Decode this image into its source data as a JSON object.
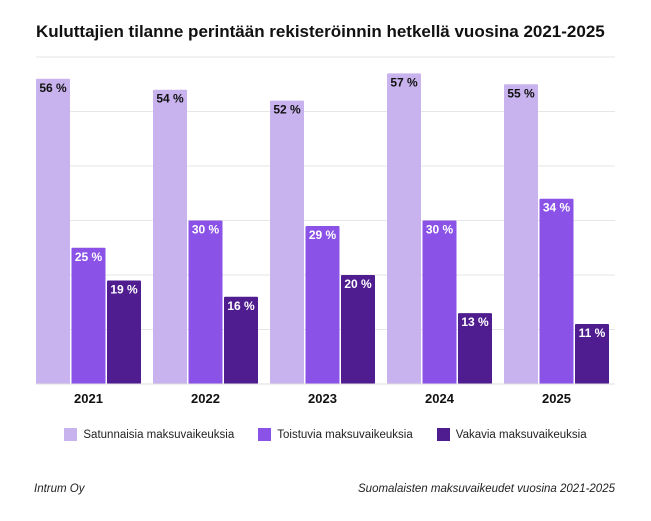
{
  "title": "Kuluttajien tilanne perintään rekisteröinnin hetkellä vuosina 2021-2025",
  "chart_data": {
    "type": "bar",
    "categories": [
      "2021",
      "2022",
      "2023",
      "2024",
      "2025"
    ],
    "series": [
      {
        "name": "Satunnaisia maksuvaikeuksia",
        "color": "#c9b3ef",
        "values": [
          56,
          54,
          52,
          57,
          55
        ]
      },
      {
        "name": "Toistuvia maksuvaikeuksia",
        "color": "#8a52e6",
        "values": [
          25,
          30,
          29,
          30,
          34
        ]
      },
      {
        "name": "Vakavia maksuvaikeuksia",
        "color": "#4f1d8f",
        "values": [
          19,
          16,
          20,
          13,
          11
        ]
      }
    ],
    "value_suffix": " %",
    "ylim": [
      0,
      60
    ],
    "grid": true,
    "legend": "bottom"
  },
  "footer": {
    "left": "Intrum Oy",
    "right": "Suomalaisten maksuvaikeudet vuosina 2021-2025"
  }
}
